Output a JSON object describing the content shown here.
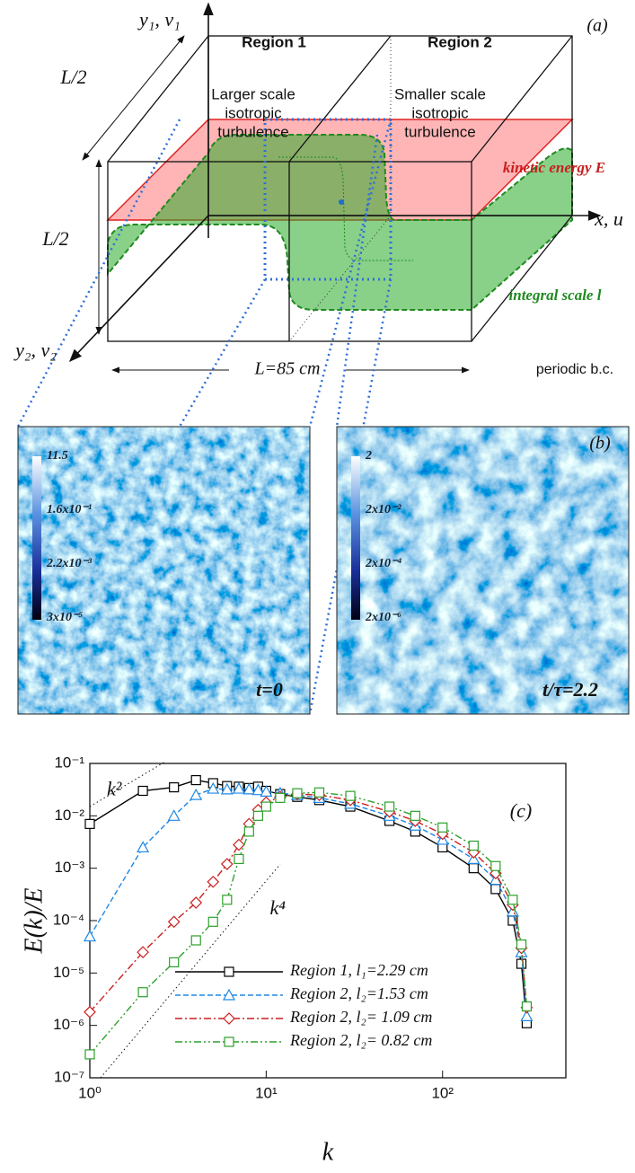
{
  "panel_a": {
    "label": "(a)",
    "axis_y1": "y₁, v₁",
    "axis_x": "x, u",
    "axis_y2": "y₂, v₂",
    "region_1": "Region 1",
    "region_2": "Region 2",
    "depth_label": "L/2",
    "height_label": "L/2",
    "length_label": "L=85 cm",
    "larger_scale": [
      "Larger scale",
      "isotropic",
      "turbulence"
    ],
    "smaller_scale": [
      "Smaller scale",
      "isotropic",
      "turbulence"
    ],
    "kinetic_energy": "kinetic energy E",
    "integral_scale": "integral scale l",
    "boundary": "periodic b.c."
  },
  "panel_b": {
    "label": "(b)",
    "left": {
      "time": "t=0",
      "colorbar": [
        "11.5",
        "1.6x10⁻¹",
        "2.2x10⁻³",
        "3x10⁻⁵"
      ]
    },
    "right": {
      "time": "t/τ=2.2",
      "colorbar": [
        "2",
        "2x10⁻²",
        "2x10⁻⁴",
        "2x10⁻⁶"
      ]
    }
  },
  "chart_data": {
    "type": "line",
    "label": "(c)",
    "x_label": "k",
    "y_label": "E(k)/E",
    "xscale": "log",
    "yscale": "log",
    "xlim": [
      1,
      500
    ],
    "ylim": [
      1e-07,
      0.1
    ],
    "xticks": [
      {
        "value": 1,
        "label": "10⁰"
      },
      {
        "value": 10,
        "label": "10¹"
      },
      {
        "value": 100,
        "label": "10²"
      }
    ],
    "yticks": [
      {
        "value": 1e-07,
        "label": "10⁻⁷"
      },
      {
        "value": 1e-06,
        "label": "10⁻⁶"
      },
      {
        "value": 1e-05,
        "label": "10⁻⁵"
      },
      {
        "value": 0.0001,
        "label": "10⁻⁴"
      },
      {
        "value": 0.001,
        "label": "10⁻³"
      },
      {
        "value": 0.01,
        "label": "10⁻²"
      },
      {
        "value": 0.1,
        "label": "10⁻¹"
      }
    ],
    "legend": "lower right",
    "x": [
      1,
      2,
      3,
      4,
      5,
      6,
      7,
      8,
      9,
      10,
      12,
      15,
      20,
      30,
      50,
      70,
      100,
      150,
      200,
      250,
      280,
      300
    ],
    "series": [
      {
        "name": "Region 1, l₁=2.29 cm",
        "color": "#000000",
        "marker": "square",
        "dash": "solid",
        "values": [
          0.007,
          0.03,
          0.035,
          0.048,
          0.042,
          0.037,
          0.036,
          0.034,
          0.036,
          0.03,
          0.026,
          0.023,
          0.02,
          0.015,
          0.008,
          0.005,
          0.0025,
          0.001,
          0.0004,
          0.0001,
          1.5e-05,
          1.1e-06
        ]
      },
      {
        "name": "Region 2, l₂=1.53 cm",
        "color": "#1e88e5",
        "marker": "triangle",
        "dash": "dashed",
        "values": [
          5e-05,
          0.0025,
          0.01,
          0.025,
          0.033,
          0.032,
          0.033,
          0.032,
          0.031,
          0.029,
          0.027,
          0.025,
          0.022,
          0.017,
          0.01,
          0.0065,
          0.0035,
          0.0015,
          0.0006,
          0.00015,
          2.5e-05,
          1.5e-06
        ]
      },
      {
        "name": "Region 2, l₂= 1.09 cm",
        "color": "#cc1f1f",
        "marker": "diamond",
        "dash": "dashdot",
        "values": [
          1.8e-06,
          2.5e-05,
          9.5e-05,
          0.00022,
          0.00055,
          0.0012,
          0.0028,
          0.007,
          0.013,
          0.018,
          0.023,
          0.026,
          0.025,
          0.02,
          0.012,
          0.008,
          0.0045,
          0.002,
          0.0008,
          0.0002,
          3e-05,
          2.2e-06
        ]
      },
      {
        "name": "Region 2, l₂= 0.82 cm",
        "color": "#2ca02c",
        "marker": "square",
        "dash": "dashdotdot",
        "values": [
          2.8e-07,
          4.3e-06,
          1.6e-05,
          4.2e-05,
          9.5e-05,
          0.00025,
          0.0015,
          0.005,
          0.01,
          0.015,
          0.022,
          0.027,
          0.028,
          0.024,
          0.015,
          0.01,
          0.006,
          0.0027,
          0.0011,
          0.00025,
          3.5e-05,
          2.3e-06
        ]
      }
    ],
    "reference_lines": [
      {
        "label": "k²",
        "x": [
          1,
          2.7
        ],
        "values": [
          0.015,
          0.11
        ],
        "label_x": 1.25,
        "label_y": 0.03
      },
      {
        "label": "k⁴",
        "x": [
          1.15,
          12
        ],
        "values": [
          1e-07,
          0.00119
        ],
        "label_x": 10.5,
        "label_y": 0.00016
      }
    ]
  }
}
